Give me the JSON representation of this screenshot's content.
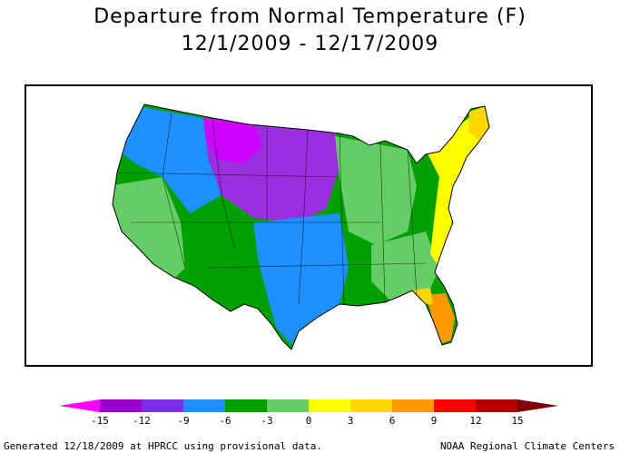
{
  "title": "Departure from Normal Temperature (F)",
  "subtitle": "12/1/2009 - 12/17/2009",
  "legend": {
    "ticks": [
      "-15",
      "-12",
      "-9",
      "-6",
      "-3",
      "0",
      "3",
      "6",
      "9",
      "12",
      "15"
    ],
    "colors": [
      "#ff00ff",
      "#9900cc",
      "#7a2ee6",
      "#1e90ff",
      "#00a000",
      "#66cc66",
      "#ffff00",
      "#ffd700",
      "#ff9900",
      "#ff0000",
      "#b30000",
      "#800000"
    ]
  },
  "map": {
    "region": "contiguous-united-states",
    "palette": {
      "purple": "#9b2fe0",
      "magenta": "#d000ff",
      "blue": "#1e90ff",
      "green": "#00a000",
      "light_green": "#66cc66",
      "yellow": "#ffff00",
      "gold": "#ffd700",
      "orange": "#ff9900"
    }
  },
  "footer": {
    "left": "Generated 12/18/2009 at HPRCC using provisional data.",
    "right": "NOAA Regional Climate Centers"
  }
}
